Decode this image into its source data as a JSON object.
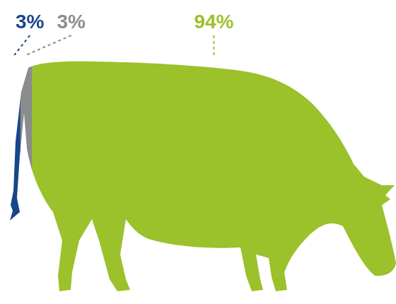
{
  "chart_data": {
    "type": "bar",
    "orientation": "horizontal",
    "stacked": true,
    "values": [
      3,
      3,
      94
    ],
    "value_labels": [
      "3%",
      "3%",
      "94%"
    ],
    "colors": [
      "#17468a",
      "#8a8c8e",
      "#9bc12b"
    ],
    "data_labels": true,
    "tick_labels": false
  }
}
